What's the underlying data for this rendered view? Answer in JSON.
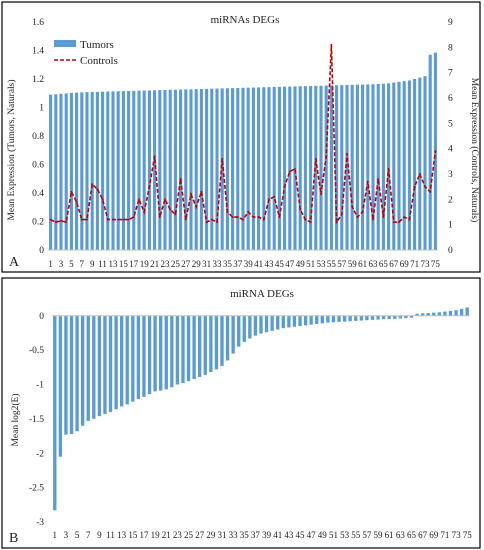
{
  "chart_data": [
    {
      "type": "bar",
      "panel_label": "A",
      "title": "miRNAs DEGs",
      "ylabel_left": "Mean Expression (Tumors, Naturals)",
      "ylabel_right": "Mean Expression (Controls, Naturals)",
      "ylim_left": [
        0,
        1.6
      ],
      "ylim_right": [
        0,
        9
      ],
      "yticks_left": [
        "0",
        "0.2",
        "0.4",
        "0.6",
        "0.8",
        "1",
        "1.2",
        "1.4",
        "1.6"
      ],
      "yticks_right": [
        "0",
        "1",
        "2",
        "3",
        "4",
        "5",
        "6",
        "7",
        "8",
        "9"
      ],
      "xtick_labels": [
        "1",
        "3",
        "5",
        "7",
        "9",
        "11",
        "13",
        "15",
        "17",
        "19",
        "21",
        "23",
        "25",
        "27",
        "29",
        "31",
        "33",
        "35",
        "37",
        "39",
        "41",
        "43",
        "45",
        "47",
        "49",
        "51",
        "53",
        "55",
        "57",
        "59",
        "61",
        "63",
        "65",
        "67",
        "69",
        "71",
        "73",
        "75"
      ],
      "legend_position": "top-left",
      "series": [
        {
          "name": "Tumors",
          "type": "bar",
          "axis": "left",
          "color": "#5b9bd5",
          "values": [
            1.09,
            1.093,
            1.096,
            1.099,
            1.102,
            1.104,
            1.106,
            1.108,
            1.109,
            1.11,
            1.111,
            1.112,
            1.113,
            1.114,
            1.115,
            1.116,
            1.117,
            1.118,
            1.119,
            1.12,
            1.121,
            1.122,
            1.123,
            1.124,
            1.125,
            1.126,
            1.127,
            1.128,
            1.129,
            1.13,
            1.131,
            1.132,
            1.133,
            1.134,
            1.135,
            1.136,
            1.137,
            1.138,
            1.139,
            1.14,
            1.141,
            1.142,
            1.143,
            1.144,
            1.145,
            1.146,
            1.147,
            1.148,
            1.149,
            1.15,
            1.151,
            1.152,
            1.153,
            1.154,
            1.155,
            1.156,
            1.157,
            1.158,
            1.159,
            1.16,
            1.161,
            1.162,
            1.163,
            1.165,
            1.167,
            1.17,
            1.175,
            1.18,
            1.185,
            1.19,
            1.2,
            1.21,
            1.22,
            1.37,
            1.385
          ]
        },
        {
          "name": "Controls",
          "type": "line",
          "axis": "right",
          "color": "#c00000",
          "values": [
            1.2,
            1.1,
            1.15,
            1.1,
            2.3,
            1.9,
            1.2,
            1.2,
            2.6,
            2.4,
            2.0,
            1.2,
            1.2,
            1.2,
            1.2,
            1.2,
            1.3,
            2.0,
            1.5,
            2.5,
            3.7,
            1.3,
            2.0,
            1.6,
            1.4,
            2.8,
            1.2,
            2.2,
            1.7,
            2.3,
            1.1,
            1.2,
            1.1,
            3.6,
            1.5,
            1.3,
            1.3,
            1.2,
            1.5,
            1.3,
            1.3,
            1.2,
            2.0,
            2.1,
            1.3,
            2.5,
            3.1,
            3.2,
            1.6,
            1.2,
            1.1,
            3.6,
            2.2,
            3.7,
            8.1,
            1.1,
            1.4,
            3.8,
            1.7,
            1.3,
            1.5,
            2.7,
            1.2,
            2.8,
            1.3,
            3.2,
            1.1,
            1.1,
            1.3,
            1.2,
            2.5,
            3.0,
            2.5,
            2.3,
            3.9
          ]
        }
      ]
    },
    {
      "type": "bar",
      "panel_label": "B",
      "title": "miRNA DEGs",
      "ylabel": "Mean log2(E)",
      "ylim": [
        -3,
        0.2
      ],
      "yticks": [
        "-3",
        "-2.5",
        "-2",
        "-1.5",
        "-1",
        "-0.5",
        "0"
      ],
      "xtick_labels": [
        "1",
        "3",
        "5",
        "7",
        "9",
        "11",
        "13",
        "15",
        "17",
        "19",
        "21",
        "23",
        "25",
        "27",
        "29",
        "31",
        "33",
        "35",
        "37",
        "39",
        "41",
        "43",
        "45",
        "47",
        "49",
        "51",
        "53",
        "55",
        "57",
        "59",
        "61",
        "63",
        "65",
        "67",
        "69",
        "71",
        "73",
        "75"
      ],
      "series": [
        {
          "name": "",
          "type": "bar",
          "color": "#5b9bd5",
          "values": [
            -2.83,
            -2.05,
            -1.73,
            -1.72,
            -1.68,
            -1.6,
            -1.53,
            -1.5,
            -1.46,
            -1.43,
            -1.4,
            -1.36,
            -1.32,
            -1.29,
            -1.25,
            -1.21,
            -1.18,
            -1.14,
            -1.1,
            -1.09,
            -1.07,
            -1.04,
            -1.0,
            -0.98,
            -0.95,
            -0.92,
            -0.89,
            -0.86,
            -0.82,
            -0.78,
            -0.73,
            -0.65,
            -0.55,
            -0.45,
            -0.38,
            -0.33,
            -0.29,
            -0.26,
            -0.24,
            -0.22,
            -0.2,
            -0.18,
            -0.17,
            -0.16,
            -0.15,
            -0.14,
            -0.13,
            -0.12,
            -0.11,
            -0.1,
            -0.095,
            -0.09,
            -0.085,
            -0.08,
            -0.075,
            -0.07,
            -0.065,
            -0.06,
            -0.055,
            -0.05,
            -0.048,
            -0.045,
            -0.04,
            -0.035,
            -0.03,
            0.03,
            0.035,
            0.04,
            0.045,
            0.05,
            0.06,
            0.07,
            0.08,
            0.1,
            0.12
          ]
        }
      ]
    }
  ]
}
